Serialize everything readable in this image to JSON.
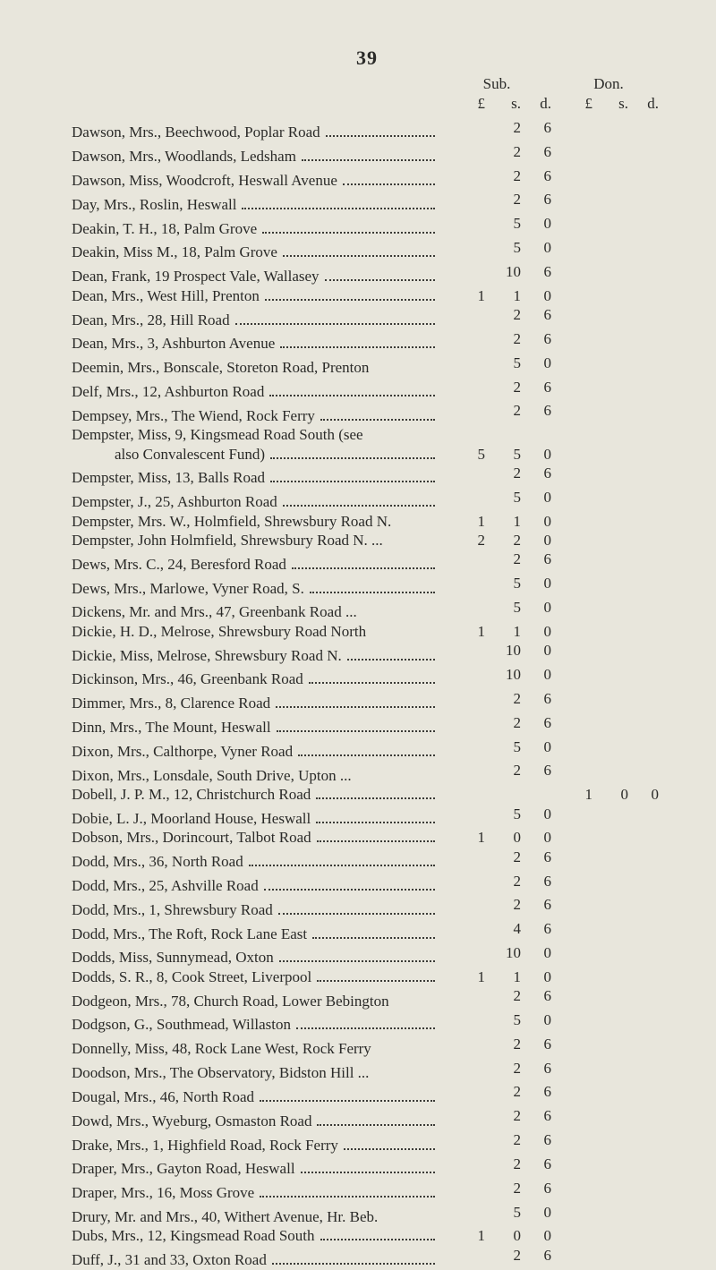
{
  "page_number": "39",
  "headers": {
    "sub": "Sub.",
    "don": "Don.",
    "units": {
      "l": "£",
      "s": "s.",
      "d": "d."
    }
  },
  "entries": [
    {
      "name": "Dawson, Mrs., Beechwood, Poplar Road",
      "sub": [
        "",
        "2",
        "6"
      ],
      "don": [
        "",
        "",
        ""
      ]
    },
    {
      "name": "Dawson, Mrs., Woodlands, Ledsham",
      "sub": [
        "",
        "2",
        "6"
      ],
      "don": [
        "",
        "",
        ""
      ]
    },
    {
      "name": "Dawson, Miss, Woodcroft, Heswall Avenue",
      "sub": [
        "",
        "2",
        "6"
      ],
      "don": [
        "",
        "",
        ""
      ]
    },
    {
      "name": "Day, Mrs., Roslin, Heswall",
      "sub": [
        "",
        "2",
        "6"
      ],
      "don": [
        "",
        "",
        ""
      ]
    },
    {
      "name": "Deakin, T. H., 18, Palm Grove",
      "sub": [
        "",
        "5",
        "0"
      ],
      "don": [
        "",
        "",
        ""
      ]
    },
    {
      "name": "Deakin, Miss M., 18, Palm Grove",
      "sub": [
        "",
        "5",
        "0"
      ],
      "don": [
        "",
        "",
        ""
      ]
    },
    {
      "name": "Dean, Frank, 19 Prospect Vale, Wallasey",
      "sub": [
        "",
        "10",
        "6"
      ],
      "don": [
        "",
        "",
        ""
      ]
    },
    {
      "name": "Dean, Mrs., West Hill, Prenton",
      "sub": [
        "1",
        "1",
        "0"
      ],
      "don": [
        "",
        "",
        ""
      ]
    },
    {
      "name": "Dean, Mrs., 28, Hill Road",
      "sub": [
        "",
        "2",
        "6"
      ],
      "don": [
        "",
        "",
        ""
      ]
    },
    {
      "name": "Dean, Mrs., 3, Ashburton Avenue",
      "sub": [
        "",
        "2",
        "6"
      ],
      "don": [
        "",
        "",
        ""
      ]
    },
    {
      "name": "Deemin, Mrs., Bonscale, Storeton Road, Prenton",
      "dots": false,
      "sub": [
        "",
        "5",
        "0"
      ],
      "don": [
        "",
        "",
        ""
      ]
    },
    {
      "name": "Delf, Mrs., 12, Ashburton Road",
      "sub": [
        "",
        "2",
        "6"
      ],
      "don": [
        "",
        "",
        ""
      ]
    },
    {
      "name": "Dempsey, Mrs., The Wiend, Rock Ferry",
      "sub": [
        "",
        "2",
        "6"
      ],
      "don": [
        "",
        "",
        ""
      ]
    },
    {
      "name": "Dempster, Miss, 9, Kingsmead Road South (see",
      "dots": false,
      "sub": [
        "",
        "",
        ""
      ],
      "don": [
        "",
        "",
        ""
      ]
    },
    {
      "name": "also Convalescent Fund)",
      "indent": true,
      "sub": [
        "5",
        "5",
        "0"
      ],
      "don": [
        "",
        "",
        ""
      ]
    },
    {
      "name": "Dempster, Miss, 13, Balls Road",
      "sub": [
        "",
        "2",
        "6"
      ],
      "don": [
        "",
        "",
        ""
      ]
    },
    {
      "name": "Dempster, J., 25, Ashburton Road",
      "sub": [
        "",
        "5",
        "0"
      ],
      "don": [
        "",
        "",
        ""
      ]
    },
    {
      "name": "Dempster, Mrs. W., Holmfield, Shrewsbury Road N.",
      "dots": false,
      "sub": [
        "1",
        "1",
        "0"
      ],
      "don": [
        "",
        "",
        ""
      ]
    },
    {
      "name": "Dempster, John Holmfield, Shrewsbury Road N. ...",
      "dots": false,
      "sub": [
        "2",
        "2",
        "0"
      ],
      "don": [
        "",
        "",
        ""
      ]
    },
    {
      "name": "Dews, Mrs. C., 24, Beresford Road",
      "sub": [
        "",
        "2",
        "6"
      ],
      "don": [
        "",
        "",
        ""
      ]
    },
    {
      "name": "Dews, Mrs., Marlowe, Vyner Road, S.",
      "sub": [
        "",
        "5",
        "0"
      ],
      "don": [
        "",
        "",
        ""
      ]
    },
    {
      "name": "Dickens, Mr. and Mrs., 47, Greenbank Road",
      "tail": "...",
      "dots": false,
      "sub": [
        "",
        "5",
        "0"
      ],
      "don": [
        "",
        "",
        ""
      ]
    },
    {
      "name": "Dickie, H. D., Melrose, Shrewsbury Road North",
      "dots": false,
      "sub": [
        "1",
        "1",
        "0"
      ],
      "don": [
        "",
        "",
        ""
      ]
    },
    {
      "name": "Dickie, Miss, Melrose, Shrewsbury Road N.",
      "sub": [
        "",
        "10",
        "0"
      ],
      "don": [
        "",
        "",
        ""
      ]
    },
    {
      "name": "Dickinson, Mrs., 46, Greenbank Road",
      "sub": [
        "",
        "10",
        "0"
      ],
      "don": [
        "",
        "",
        ""
      ]
    },
    {
      "name": "Dimmer, Mrs., 8, Clarence Road",
      "sub": [
        "",
        "2",
        "6"
      ],
      "don": [
        "",
        "",
        ""
      ]
    },
    {
      "name": "Dinn, Mrs., The Mount, Heswall",
      "sub": [
        "",
        "2",
        "6"
      ],
      "don": [
        "",
        "",
        ""
      ]
    },
    {
      "name": "Dixon, Mrs., Calthorpe, Vyner Road",
      "sub": [
        "",
        "5",
        "0"
      ],
      "don": [
        "",
        "",
        ""
      ]
    },
    {
      "name": "Dixon, Mrs., Lonsdale, South Drive, Upton",
      "tail": "...",
      "dots": false,
      "sub": [
        "",
        "2",
        "6"
      ],
      "don": [
        "",
        "",
        ""
      ]
    },
    {
      "name": "Dobell, J. P. M., 12, Christchurch Road",
      "sub": [
        "",
        "",
        ""
      ],
      "don": [
        "1",
        "0",
        "0"
      ]
    },
    {
      "name": "Dobie, L. J., Moorland House, Heswall",
      "sub": [
        "",
        "5",
        "0"
      ],
      "don": [
        "",
        "",
        ""
      ]
    },
    {
      "name": "Dobson, Mrs., Dorincourt, Talbot Road",
      "sub": [
        "1",
        "0",
        "0"
      ],
      "don": [
        "",
        "",
        ""
      ]
    },
    {
      "name": "Dodd, Mrs., 36, North Road",
      "sub": [
        "",
        "2",
        "6"
      ],
      "don": [
        "",
        "",
        ""
      ]
    },
    {
      "name": "Dodd, Mrs., 25, Ashville Road",
      "sub": [
        "",
        "2",
        "6"
      ],
      "don": [
        "",
        "",
        ""
      ]
    },
    {
      "name": "Dodd, Mrs., 1, Shrewsbury Road",
      "sub": [
        "",
        "2",
        "6"
      ],
      "don": [
        "",
        "",
        ""
      ]
    },
    {
      "name": "Dodd, Mrs., The Roft, Rock Lane East",
      "sub": [
        "",
        "4",
        "6"
      ],
      "don": [
        "",
        "",
        ""
      ]
    },
    {
      "name": "Dodds, Miss, Sunnymead, Oxton",
      "sub": [
        "",
        "10",
        "0"
      ],
      "don": [
        "",
        "",
        ""
      ]
    },
    {
      "name": "Dodds, S. R., 8, Cook Street, Liverpool",
      "sub": [
        "1",
        "1",
        "0"
      ],
      "don": [
        "",
        "",
        ""
      ]
    },
    {
      "name": "Dodgeon, Mrs., 78, Church Road, Lower Bebington",
      "dots": false,
      "sub": [
        "",
        "2",
        "6"
      ],
      "don": [
        "",
        "",
        ""
      ]
    },
    {
      "name": "Dodgson, G., Southmead, Willaston",
      "sub": [
        "",
        "5",
        "0"
      ],
      "don": [
        "",
        "",
        ""
      ]
    },
    {
      "name": "Donnelly, Miss, 48, Rock Lane West, Rock Ferry",
      "dots": false,
      "sub": [
        "",
        "2",
        "6"
      ],
      "don": [
        "",
        "",
        ""
      ]
    },
    {
      "name": "Doodson, Mrs., The Observatory, Bidston Hill",
      "tail": "...",
      "dots": false,
      "sub": [
        "",
        "2",
        "6"
      ],
      "don": [
        "",
        "",
        ""
      ]
    },
    {
      "name": "Dougal, Mrs., 46, North Road",
      "sub": [
        "",
        "2",
        "6"
      ],
      "don": [
        "",
        "",
        ""
      ]
    },
    {
      "name": "Dowd, Mrs., Wyeburg, Osmaston Road",
      "sub": [
        "",
        "2",
        "6"
      ],
      "don": [
        "",
        "",
        ""
      ]
    },
    {
      "name": "Drake, Mrs., 1, Highfield Road, Rock Ferry",
      "sub": [
        "",
        "2",
        "6"
      ],
      "don": [
        "",
        "",
        ""
      ]
    },
    {
      "name": "Draper, Mrs., Gayton Road, Heswall",
      "sub": [
        "",
        "2",
        "6"
      ],
      "don": [
        "",
        "",
        ""
      ]
    },
    {
      "name": "Draper, Mrs., 16, Moss Grove",
      "sub": [
        "",
        "2",
        "6"
      ],
      "don": [
        "",
        "",
        ""
      ]
    },
    {
      "name": "Drury, Mr. and Mrs., 40, Withert Avenue, Hr. Beb.",
      "dots": false,
      "sub": [
        "",
        "5",
        "0"
      ],
      "don": [
        "",
        "",
        ""
      ]
    },
    {
      "name": "Dubs, Mrs., 12, Kingsmead Road South",
      "sub": [
        "1",
        "0",
        "0"
      ],
      "don": [
        "",
        "",
        ""
      ]
    },
    {
      "name": "Duff, J., 31 and 33, Oxton Road",
      "sub": [
        "",
        "2",
        "6"
      ],
      "don": [
        "",
        "",
        ""
      ]
    }
  ]
}
